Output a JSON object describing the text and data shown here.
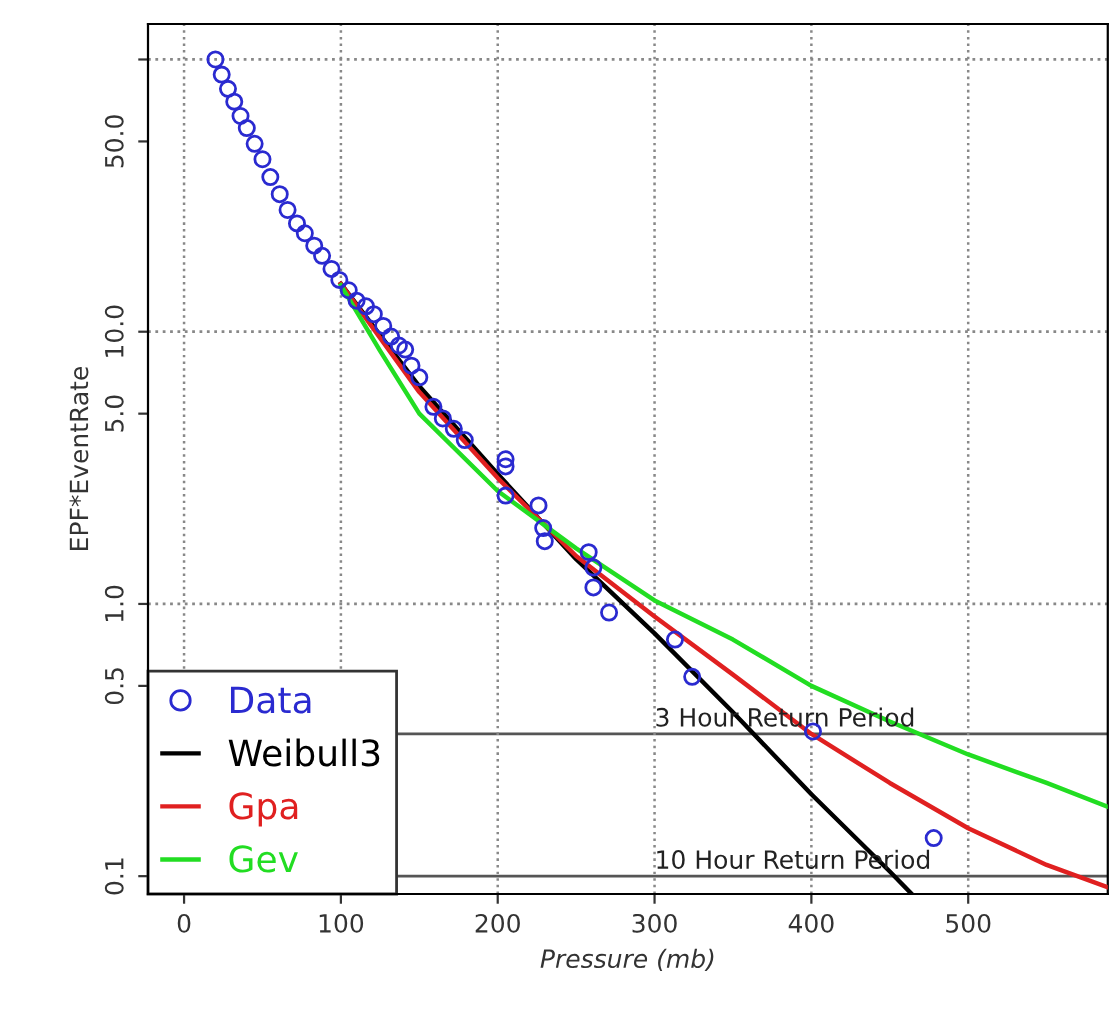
{
  "chart_data": {
    "type": "scatter",
    "xlabel": "Pressure (mb)",
    "ylabel": "EPF*EventRate",
    "log": "y",
    "xlim": [
      -23,
      589
    ],
    "ylim": [
      0.086,
      135
    ],
    "xticks": [
      0,
      100,
      200,
      300,
      400,
      500
    ],
    "yticks": [
      {
        "value": 0.1,
        "label": "0.1"
      },
      {
        "value": 0.5,
        "label": "0.5"
      },
      {
        "value": 1,
        "label": "1.0"
      },
      {
        "value": 5,
        "label": "5.0"
      },
      {
        "value": 10,
        "label": "10.0"
      },
      {
        "value": 50,
        "label": "50.0"
      },
      {
        "value": 100,
        "label": null
      }
    ],
    "grid": "x",
    "legend": "bottom left",
    "series": [
      {
        "name": "Data",
        "marker": "circle",
        "color": "#2a2ad0",
        "x": [
          20,
          24,
          28,
          32,
          36,
          40,
          45,
          50,
          55,
          61,
          66,
          72,
          77,
          83,
          88,
          94,
          99,
          105,
          110,
          116,
          121,
          127,
          132,
          137,
          141,
          145,
          150,
          159,
          165,
          172,
          179,
          205,
          205,
          205,
          226,
          229,
          230,
          258,
          261,
          261,
          271,
          313,
          324,
          401,
          478
        ],
        "values": [
          100,
          88,
          78,
          70,
          62,
          56,
          49,
          43,
          37,
          32,
          28,
          25,
          23,
          20.7,
          19,
          17,
          15.5,
          14.2,
          13,
          12.4,
          11.6,
          10.5,
          9.6,
          8.9,
          8.6,
          7.5,
          6.8,
          5.3,
          4.8,
          4.4,
          4.0,
          3.4,
          3.2,
          2.5,
          2.3,
          1.9,
          1.7,
          1.55,
          1.36,
          1.15,
          0.93,
          0.74,
          0.54,
          0.34,
          0.138
        ]
      },
      {
        "name": "Weibull3",
        "type": "line",
        "marker": "none",
        "color": "#000000",
        "x": [
          100,
          150,
          200,
          250,
          300,
          350,
          400,
          450,
          464
        ],
        "values": [
          15,
          6.3,
          3.0,
          1.46,
          0.78,
          0.4,
          0.2,
          0.104,
          0.086
        ]
      },
      {
        "name": "Gpa",
        "type": "line",
        "marker": "none",
        "color": "#e02020",
        "x": [
          100,
          150,
          200,
          250,
          300,
          350,
          400,
          450,
          500,
          550,
          589
        ],
        "values": [
          15,
          6.0,
          2.9,
          1.5,
          0.9,
          0.55,
          0.333,
          0.22,
          0.15,
          0.11,
          0.091
        ]
      },
      {
        "name": "Gev",
        "type": "line",
        "marker": "none",
        "color": "#22dd22",
        "x": [
          100,
          125,
          150,
          200,
          250,
          300,
          350,
          400,
          450,
          500,
          550,
          589
        ],
        "values": [
          14.8,
          8.5,
          5.0,
          2.6,
          1.6,
          1.03,
          0.74,
          0.5,
          0.37,
          0.28,
          0.22,
          0.18
        ]
      }
    ],
    "ref_lines": [
      {
        "axis": "y",
        "value": 0.333,
        "label": "3 Hour Return Period",
        "color": "#555555",
        "line_style": "solid"
      },
      {
        "axis": "y",
        "value": 0.1,
        "label": "10 Hour Return Period",
        "color": "#555555",
        "line_style": "solid"
      },
      {
        "axis": "y",
        "value": 1,
        "color": "#888888",
        "line_style": "dotted"
      },
      {
        "axis": "y",
        "value": 10,
        "color": "#888888",
        "line_style": "dotted"
      },
      {
        "axis": "y",
        "value": 100,
        "color": "#888888",
        "line_style": "dotted"
      }
    ]
  }
}
